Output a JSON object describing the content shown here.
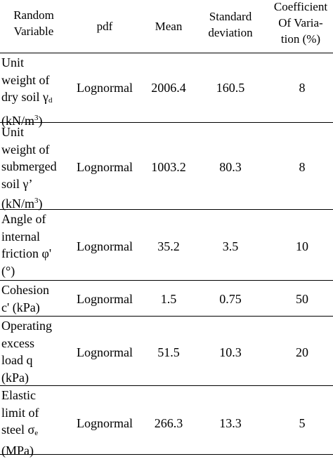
{
  "header": {
    "random_variable": "Random\nVariable",
    "pdf": "pdf",
    "mean": "Mean",
    "standard_deviation": "Standard\ndeviation",
    "cov": "Coefficient\nOf Varia-\ntion (%)"
  },
  "rows": [
    {
      "variable_lines": [
        "Unit",
        "weight of",
        "dry soil γ",
        "(kN/m",
        ")"
      ],
      "variable_sub": "d",
      "variable_sup": "3",
      "pdf": "Lognormal",
      "mean": "2006.4",
      "sd": "160.5",
      "cov": "8"
    },
    {
      "variable_lines": [
        "Unit",
        "weight of",
        "submerged",
        "soil γ’",
        "(kN/m",
        ")"
      ],
      "variable_sup": "3",
      "pdf": "Lognormal",
      "mean": "1003.2",
      "sd": "80.3",
      "cov": "8"
    },
    {
      "variable_lines": [
        "Angle of",
        "internal",
        "friction φ'",
        "(°)"
      ],
      "pdf": "Lognormal",
      "mean": "35.2",
      "sd": "3.5",
      "cov": "10"
    },
    {
      "variable_lines": [
        "Cohesion",
        "c' (kPa)"
      ],
      "pdf": "Lognormal",
      "mean": "1.5",
      "sd": "0.75",
      "cov": "50"
    },
    {
      "variable_lines": [
        "Operating",
        "excess",
        "load q",
        "(kPa)"
      ],
      "pdf": "Lognormal",
      "mean": "51.5",
      "sd": "10.3",
      "cov": "20"
    },
    {
      "variable_lines": [
        "Elastic",
        "limit of",
        "steel σ",
        "(MPa)"
      ],
      "variable_sub": "e",
      "pdf": "Lognormal",
      "mean": "266.3",
      "sd": "13.3",
      "cov": "5"
    }
  ]
}
